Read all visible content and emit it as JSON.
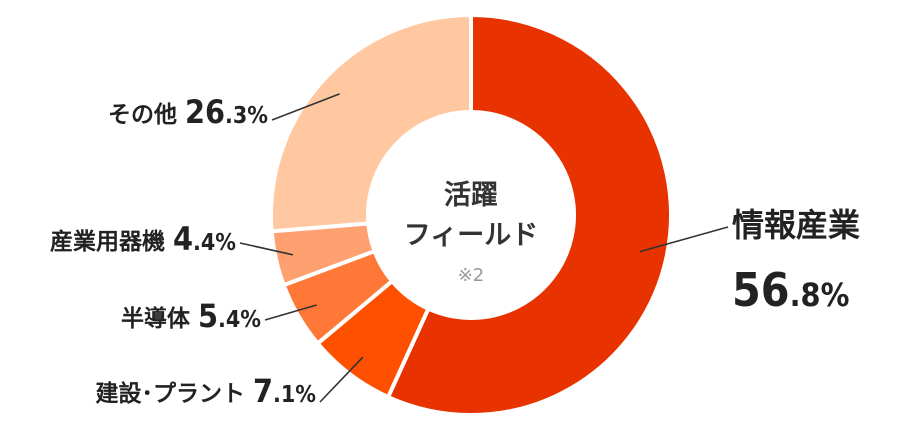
{
  "chart_data": {
    "type": "pie",
    "center_label": [
      "活躍",
      "フィールド"
    ],
    "center_note": "※2",
    "slices": [
      {
        "label": "情報産業",
        "int": "56",
        "dec": ".8",
        "pct": "%",
        "value": 56.8,
        "color": "#E83200"
      },
      {
        "label": "建設･プラント",
        "int": "7",
        "dec": ".1",
        "pct": "%",
        "value": 7.1,
        "color": "#FF5000"
      },
      {
        "label": "半導体",
        "int": "5",
        "dec": ".4",
        "pct": "%",
        "value": 5.4,
        "color": "#FF7838"
      },
      {
        "label": "産業用器機",
        "int": "4",
        "dec": ".4",
        "pct": "%",
        "value": 4.4,
        "color": "#FFA070"
      },
      {
        "label": "その他",
        "int": "26",
        "dec": ".3",
        "pct": "%",
        "value": 26.3,
        "color": "#FFC8A0"
      }
    ]
  }
}
